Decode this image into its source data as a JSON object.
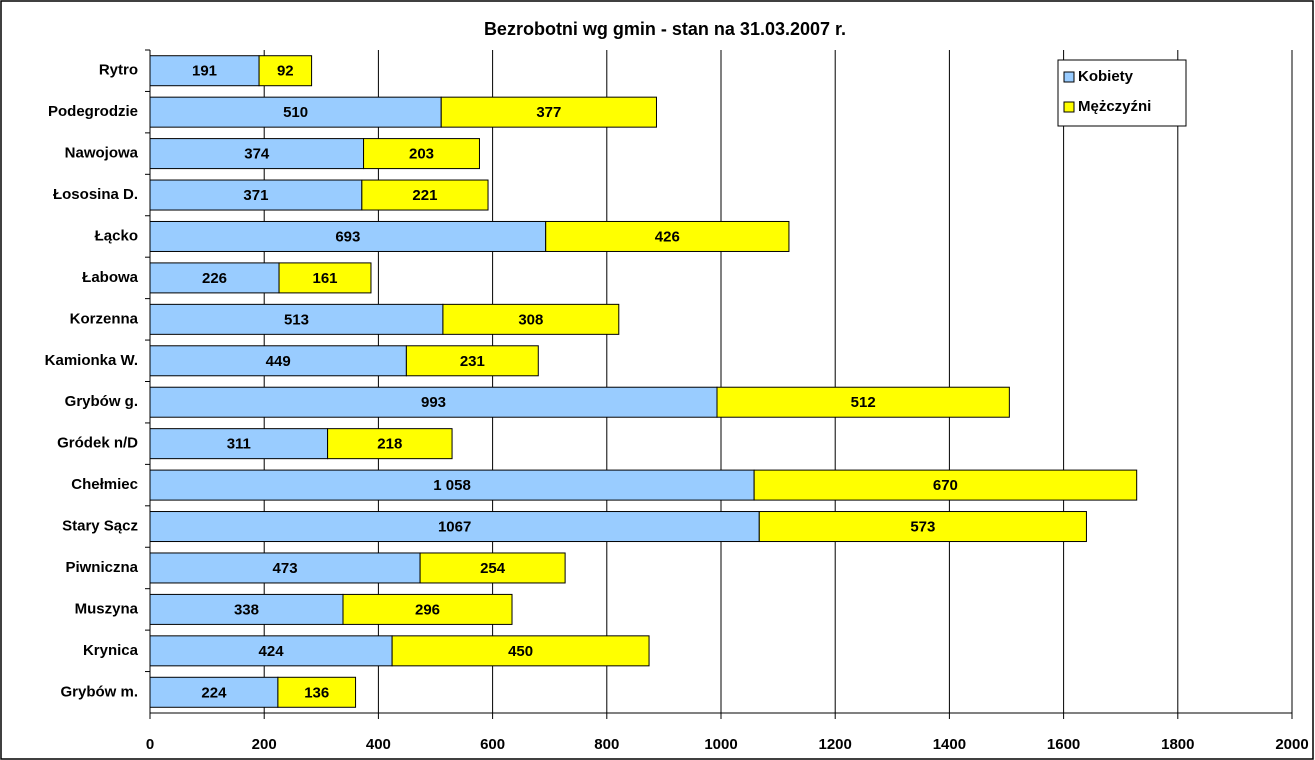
{
  "chart_data": {
    "type": "stacked_bar_horizontal",
    "title": "Bezrobotni wg gmin - stan na 31.03.2007 r.",
    "categories": [
      "Rytro",
      "Podegrodzie",
      "Nawojowa",
      "Łososina D.",
      "Łącko",
      "Łabowa",
      "Korzenna",
      "Kamionka W.",
      "Grybów g.",
      "Gródek n/D",
      "Chełmiec",
      "Stary Sącz",
      "Piwniczna",
      "Muszyna",
      "Krynica",
      "Grybów m."
    ],
    "series": [
      {
        "name": "Kobiety",
        "color": "#99ccff",
        "values": [
          191,
          510,
          374,
          371,
          693,
          226,
          513,
          449,
          993,
          311,
          1058,
          1067,
          473,
          338,
          424,
          224
        ],
        "value_labels": [
          "191",
          "510",
          "374",
          "371",
          "693",
          "226",
          "513",
          "449",
          "993",
          "311",
          "1 058",
          "1067",
          "473",
          "338",
          "424",
          "224"
        ]
      },
      {
        "name": "Mężczyźni",
        "color": "#ffff00",
        "values": [
          92,
          377,
          203,
          221,
          426,
          161,
          308,
          231,
          512,
          218,
          670,
          573,
          254,
          296,
          450,
          136
        ]
      }
    ],
    "xlim": [
      0,
      2000
    ],
    "xticks": [
      0,
      200,
      400,
      600,
      800,
      1000,
      1200,
      1400,
      1600,
      1800,
      2000
    ],
    "grid": true,
    "legend": "top-right"
  }
}
